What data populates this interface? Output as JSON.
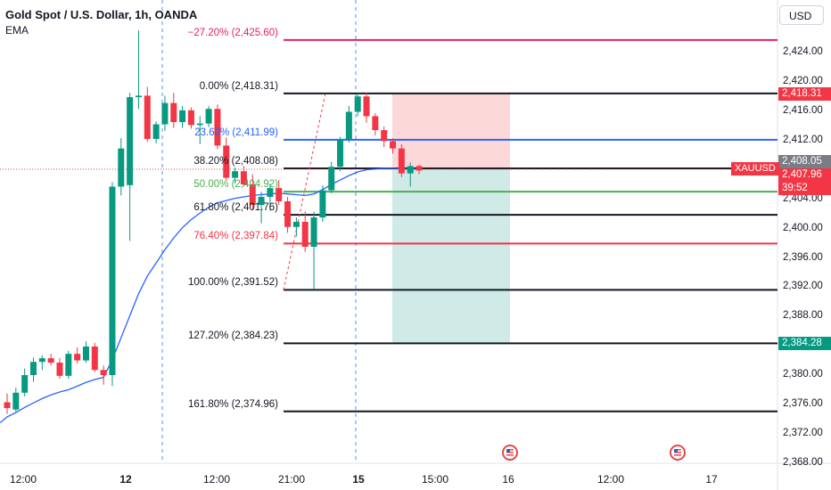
{
  "header": {
    "symbol_title": "Gold Spot / U.S. Dollar, 1h, OANDA",
    "indicator": "EMA"
  },
  "currency_button": "USD",
  "colors": {
    "up": "#089981",
    "down": "#f23645",
    "ema": "#2962ff",
    "stop_zone": "#fdd8d8",
    "target_zone": "#cfeae7"
  },
  "chart_data": {
    "type": "candlestick",
    "symbol": "XAUUSD",
    "timeframe": "1h",
    "y_axis": {
      "ticks": [
        "2,424.00",
        "2,420.00",
        "2,416.00",
        "2,412.00",
        "2,408.00",
        "2,404.00",
        "2,400.00",
        "2,396.00",
        "2,392.00",
        "2,388.00",
        "2,384.00",
        "2,380.00",
        "2,376.00",
        "2,372.00",
        "2,368.00"
      ],
      "range": [
        2367.5,
        2430.5
      ]
    },
    "x_axis": {
      "ticks": [
        "12:00",
        "12",
        "12:00",
        "21:00",
        "15",
        "15:00",
        "16",
        "12:00",
        "17"
      ],
      "session_breaks": [
        "12",
        "15"
      ]
    },
    "candles": [
      {
        "o": 2376.2,
        "h": 2377.4,
        "l": 2374.6,
        "c": 2375.4
      },
      {
        "o": 2375.2,
        "h": 2378.2,
        "l": 2374.8,
        "c": 2377.5
      },
      {
        "o": 2377.5,
        "h": 2380.8,
        "l": 2377.0,
        "c": 2379.9
      },
      {
        "o": 2379.9,
        "h": 2382.3,
        "l": 2379.0,
        "c": 2381.7
      },
      {
        "o": 2381.7,
        "h": 2382.6,
        "l": 2380.6,
        "c": 2382.2
      },
      {
        "o": 2382.2,
        "h": 2382.8,
        "l": 2381.2,
        "c": 2381.6
      },
      {
        "o": 2381.6,
        "h": 2382.2,
        "l": 2379.4,
        "c": 2379.8
      },
      {
        "o": 2379.8,
        "h": 2383.2,
        "l": 2379.4,
        "c": 2382.8
      },
      {
        "o": 2382.8,
        "h": 2383.7,
        "l": 2381.5,
        "c": 2381.9
      },
      {
        "o": 2381.9,
        "h": 2384.5,
        "l": 2381.6,
        "c": 2383.8
      },
      {
        "o": 2383.8,
        "h": 2384.3,
        "l": 2380.3,
        "c": 2380.6
      },
      {
        "o": 2380.6,
        "h": 2381.2,
        "l": 2378.6,
        "c": 2379.9
      },
      {
        "o": 2379.9,
        "h": 2406.2,
        "l": 2378.4,
        "c": 2405.6
      },
      {
        "o": 2405.6,
        "h": 2412.2,
        "l": 2404.4,
        "c": 2410.8
      },
      {
        "o": 2405.8,
        "h": 2418.4,
        "l": 2398.2,
        "c": 2417.8
      },
      {
        "o": 2417.8,
        "h": 2426.9,
        "l": 2416.2,
        "c": 2418.0
      },
      {
        "o": 2418.0,
        "h": 2419.2,
        "l": 2411.7,
        "c": 2412.1
      },
      {
        "o": 2412.1,
        "h": 2414.5,
        "l": 2411.5,
        "c": 2414.1
      },
      {
        "o": 2414.1,
        "h": 2418.0,
        "l": 2413.2,
        "c": 2417.0
      },
      {
        "o": 2417.0,
        "h": 2418.4,
        "l": 2413.6,
        "c": 2414.4
      },
      {
        "o": 2414.4,
        "h": 2416.6,
        "l": 2413.6,
        "c": 2416.0
      },
      {
        "o": 2416.0,
        "h": 2416.4,
        "l": 2413.5,
        "c": 2414.0
      },
      {
        "o": 2414.0,
        "h": 2415.2,
        "l": 2411.4,
        "c": 2414.2
      },
      {
        "o": 2414.2,
        "h": 2416.6,
        "l": 2413.7,
        "c": 2416.2
      },
      {
        "o": 2416.2,
        "h": 2416.8,
        "l": 2410.7,
        "c": 2411.2
      },
      {
        "o": 2411.2,
        "h": 2412.3,
        "l": 2406.4,
        "c": 2406.8
      },
      {
        "o": 2406.8,
        "h": 2408.2,
        "l": 2406.0,
        "c": 2407.7
      },
      {
        "o": 2407.7,
        "h": 2408.4,
        "l": 2405.6,
        "c": 2405.9
      },
      {
        "o": 2405.9,
        "h": 2407.3,
        "l": 2402.4,
        "c": 2403.1
      },
      {
        "o": 2403.1,
        "h": 2404.9,
        "l": 2400.6,
        "c": 2404.2
      },
      {
        "o": 2404.2,
        "h": 2406.0,
        "l": 2402.3,
        "c": 2405.4
      },
      {
        "o": 2405.4,
        "h": 2406.5,
        "l": 2403.1,
        "c": 2403.6
      },
      {
        "o": 2403.6,
        "h": 2404.2,
        "l": 2399.3,
        "c": 2400.1
      },
      {
        "o": 2400.1,
        "h": 2401.4,
        "l": 2398.8,
        "c": 2400.8
      },
      {
        "o": 2400.8,
        "h": 2402.2,
        "l": 2396.7,
        "c": 2397.4
      },
      {
        "o": 2397.4,
        "h": 2402.2,
        "l": 2391.6,
        "c": 2401.4
      },
      {
        "o": 2401.4,
        "h": 2405.8,
        "l": 2400.8,
        "c": 2405.1
      },
      {
        "o": 2405.1,
        "h": 2409.0,
        "l": 2404.7,
        "c": 2408.3
      },
      {
        "o": 2408.3,
        "h": 2412.4,
        "l": 2407.7,
        "c": 2412.0
      },
      {
        "o": 2412.0,
        "h": 2416.6,
        "l": 2411.6,
        "c": 2415.8
      },
      {
        "o": 2415.8,
        "h": 2418.3,
        "l": 2415.2,
        "c": 2417.9
      },
      {
        "o": 2417.9,
        "h": 2418.4,
        "l": 2414.3,
        "c": 2415.2
      },
      {
        "o": 2415.2,
        "h": 2415.6,
        "l": 2412.6,
        "c": 2413.3
      },
      {
        "o": 2413.3,
        "h": 2413.8,
        "l": 2411.0,
        "c": 2411.8
      },
      {
        "o": 2411.8,
        "h": 2412.2,
        "l": 2410.1,
        "c": 2410.8
      },
      {
        "o": 2410.8,
        "h": 2411.4,
        "l": 2406.9,
        "c": 2407.4
      },
      {
        "o": 2407.4,
        "h": 2408.9,
        "l": 2405.6,
        "c": 2408.4
      },
      {
        "o": 2408.4,
        "h": 2408.6,
        "l": 2407.3,
        "c": 2407.8
      }
    ],
    "ema": [
      2374.2,
      2374.8,
      2375.5,
      2376.1,
      2376.7,
      2377.2,
      2377.6,
      2377.9,
      2378.4,
      2378.9,
      2379.3,
      2379.6,
      2382.0,
      2385.0,
      2388.0,
      2391.0,
      2393.4,
      2395.2,
      2397.0,
      2398.6,
      2400.0,
      2401.1,
      2402.0,
      2402.8,
      2403.4,
      2403.7,
      2404.0,
      2404.2,
      2404.4,
      2404.5,
      2404.6,
      2404.7,
      2404.6,
      2404.5,
      2404.4,
      2404.6,
      2405.2,
      2405.9,
      2406.5,
      2407.1,
      2407.6,
      2407.9,
      2408.0,
      2408.1,
      2408.1,
      2408.0,
      2408.0,
      2408.0
    ],
    "fib_levels": [
      {
        "label": "−27.20% (2,425.60)",
        "price": 2425.6,
        "color": "#e91e63"
      },
      {
        "label": "0.00% (2,418.31)",
        "price": 2418.31,
        "color": "#131722"
      },
      {
        "label": "23.60% (2,411.99)",
        "price": 2411.99,
        "color": "#2962ff"
      },
      {
        "label": "38.20% (2,408.08)",
        "price": 2408.08,
        "color": "#131722"
      },
      {
        "label": "50.00% (2,404.92)",
        "price": 2404.92,
        "color": "#4caf50"
      },
      {
        "label": "61.80% (2,401.76)",
        "price": 2401.76,
        "color": "#131722"
      },
      {
        "label": "76.40% (2,397.84)",
        "price": 2397.84,
        "color": "#f23645"
      },
      {
        "label": "100.00% (2,391.52)",
        "price": 2391.52,
        "color": "#131722"
      },
      {
        "label": "127.20% (2,384.23)",
        "price": 2384.23,
        "color": "#131722"
      },
      {
        "label": "161.80% (2,374.96)",
        "price": 2374.96,
        "color": "#131722"
      }
    ],
    "position_tool": {
      "entry": 2408.05,
      "stop": 2418.31,
      "target": 2384.28
    },
    "current_price": 2407.96,
    "timer": "39:52",
    "price_tags": [
      {
        "text": "2,418.31",
        "price": 2418.31,
        "color": "#f23645"
      },
      {
        "text": "2,408.05",
        "price": 2408.05,
        "color": "#7a7d85"
      },
      {
        "text": "2,384.28",
        "price": 2384.28,
        "color": "#089981"
      }
    ]
  },
  "price_tags_text": {
    "stop": "2,418.31",
    "entry": "2,408.05",
    "current": "2,407.96",
    "timer": "39:52",
    "target": "2,384.28",
    "symbol": "XAUUSD"
  }
}
